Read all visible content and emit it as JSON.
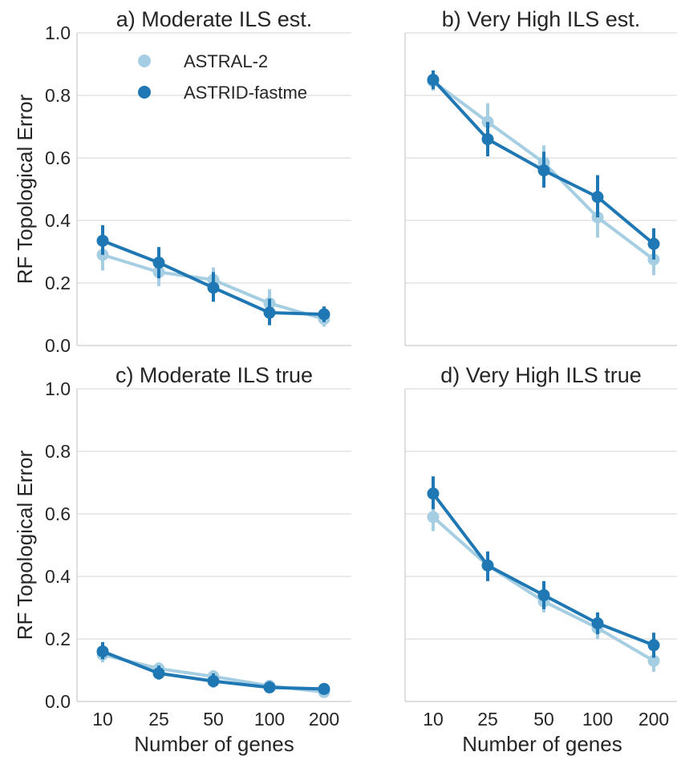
{
  "figure": {
    "ylabel": "RF Topological Error",
    "xlabel": "Number of genes"
  },
  "chart_data": [
    {
      "type": "line",
      "title": "a) Moderate ILS est.",
      "categories": [
        "10",
        "25",
        "50",
        "100",
        "200"
      ],
      "ylim": [
        0.0,
        1.0
      ],
      "yticks": [
        "0.0",
        "0.2",
        "0.4",
        "0.6",
        "0.8",
        "1.0"
      ],
      "grid": true,
      "legend": "top-left",
      "series": [
        {
          "name": "ASTRAL-2",
          "color": "#a6cee3",
          "values": [
            0.29,
            0.235,
            0.21,
            0.135,
            0.085
          ],
          "err": [
            [
              0.24,
              0.33
            ],
            [
              0.19,
              0.27
            ],
            [
              0.17,
              0.25
            ],
            [
              0.1,
              0.18
            ],
            [
              0.06,
              0.11
            ]
          ]
        },
        {
          "name": "ASTRID-fastme",
          "color": "#1f78b4",
          "values": [
            0.335,
            0.265,
            0.185,
            0.105,
            0.1
          ],
          "err": [
            [
              0.29,
              0.385
            ],
            [
              0.215,
              0.315
            ],
            [
              0.14,
              0.235
            ],
            [
              0.065,
              0.15
            ],
            [
              0.075,
              0.125
            ]
          ]
        }
      ]
    },
    {
      "type": "line",
      "title": "b) Very High ILS est.",
      "categories": [
        "10",
        "25",
        "50",
        "100",
        "200"
      ],
      "ylim": [
        0.0,
        1.0
      ],
      "grid": true,
      "series": [
        {
          "name": "ASTRAL-2",
          "color": "#a6cee3",
          "values": [
            0.845,
            0.715,
            0.585,
            0.41,
            0.275
          ],
          "err": [
            [
              0.815,
              0.875
            ],
            [
              0.66,
              0.775
            ],
            [
              0.53,
              0.64
            ],
            [
              0.345,
              0.475
            ],
            [
              0.225,
              0.325
            ]
          ]
        },
        {
          "name": "ASTRID-fastme",
          "color": "#1f78b4",
          "values": [
            0.85,
            0.66,
            0.56,
            0.475,
            0.325
          ],
          "err": [
            [
              0.82,
              0.88
            ],
            [
              0.605,
              0.715
            ],
            [
              0.505,
              0.62
            ],
            [
              0.41,
              0.545
            ],
            [
              0.275,
              0.375
            ]
          ]
        }
      ]
    },
    {
      "type": "line",
      "title": "c) Moderate ILS true",
      "categories": [
        "10",
        "25",
        "50",
        "100",
        "200"
      ],
      "ylim": [
        0.0,
        1.0
      ],
      "yticks": [
        "0.0",
        "0.2",
        "0.4",
        "0.6",
        "0.8",
        "1.0"
      ],
      "grid": true,
      "series": [
        {
          "name": "ASTRAL-2",
          "color": "#a6cee3",
          "values": [
            0.15,
            0.105,
            0.08,
            0.05,
            0.03
          ],
          "err": [
            [
              0.125,
              0.175
            ],
            [
              0.085,
              0.125
            ],
            [
              0.06,
              0.1
            ],
            [
              0.035,
              0.065
            ],
            [
              0.02,
              0.04
            ]
          ]
        },
        {
          "name": "ASTRID-fastme",
          "color": "#1f78b4",
          "values": [
            0.16,
            0.09,
            0.065,
            0.045,
            0.04
          ],
          "err": [
            [
              0.135,
              0.19
            ],
            [
              0.07,
              0.115
            ],
            [
              0.045,
              0.09
            ],
            [
              0.03,
              0.065
            ],
            [
              0.03,
              0.05
            ]
          ]
        }
      ]
    },
    {
      "type": "line",
      "title": "d) Very High ILS true",
      "categories": [
        "10",
        "25",
        "50",
        "100",
        "200"
      ],
      "ylim": [
        0.0,
        1.0
      ],
      "grid": true,
      "series": [
        {
          "name": "ASTRAL-2",
          "color": "#a6cee3",
          "values": [
            0.59,
            0.435,
            0.32,
            0.235,
            0.13
          ],
          "err": [
            [
              0.545,
              0.635
            ],
            [
              0.39,
              0.475
            ],
            [
              0.285,
              0.355
            ],
            [
              0.2,
              0.27
            ],
            [
              0.095,
              0.165
            ]
          ]
        },
        {
          "name": "ASTRID-fastme",
          "color": "#1f78b4",
          "values": [
            0.665,
            0.435,
            0.34,
            0.25,
            0.18
          ],
          "err": [
            [
              0.615,
              0.72
            ],
            [
              0.385,
              0.48
            ],
            [
              0.295,
              0.385
            ],
            [
              0.215,
              0.285
            ],
            [
              0.14,
              0.22
            ]
          ]
        }
      ]
    }
  ]
}
